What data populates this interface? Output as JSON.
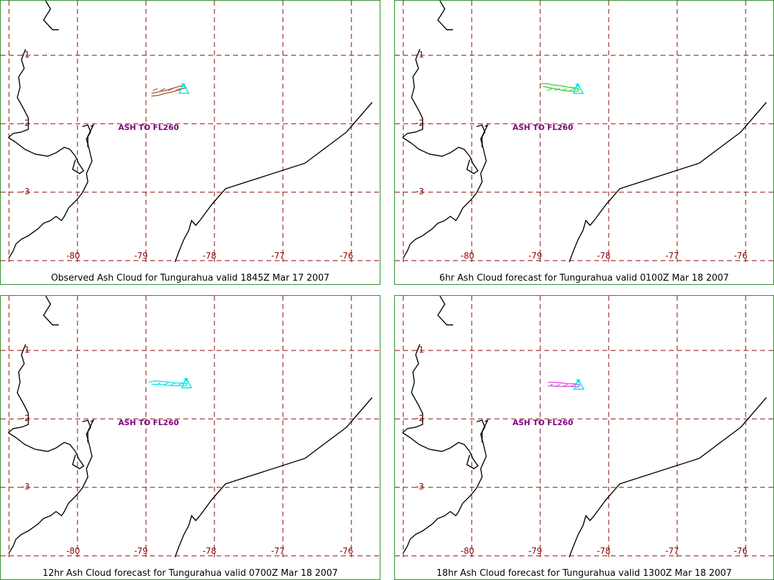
{
  "panels": [
    {
      "caption": "Observed Ash Cloud for Tungurahua valid 1845Z Mar 17 2007",
      "label": "ASH TO FL260",
      "cloud_color": "#a0522d"
    },
    {
      "caption": "6hr Ash Cloud forecast for Tungurahua valid 0100Z Mar 18 2007",
      "label": "ASH TO FL260",
      "cloud_color": "#33cc33"
    },
    {
      "caption": "12hr Ash Cloud forecast for Tungurahua valid 0700Z Mar 18 2007",
      "label": "ASH TO FL260",
      "cloud_color": "#00e5ee"
    },
    {
      "caption": "18hr Ash Cloud forecast for Tungurahua valid 1300Z Mar 18 2007",
      "label": "ASH TO FL260",
      "cloud_color": "#e040e0"
    }
  ],
  "map": {
    "lat_labels": [
      "-1",
      "-2",
      "-3"
    ],
    "lon_labels": [
      "-80",
      "-79",
      "-78",
      "-77",
      "-76"
    ],
    "volcano_marker_color": "#00e5ee",
    "label_color": "#800080",
    "grid_color": "#8b0000",
    "coast_color": "#000000",
    "border_color": "#2e8b2e"
  }
}
